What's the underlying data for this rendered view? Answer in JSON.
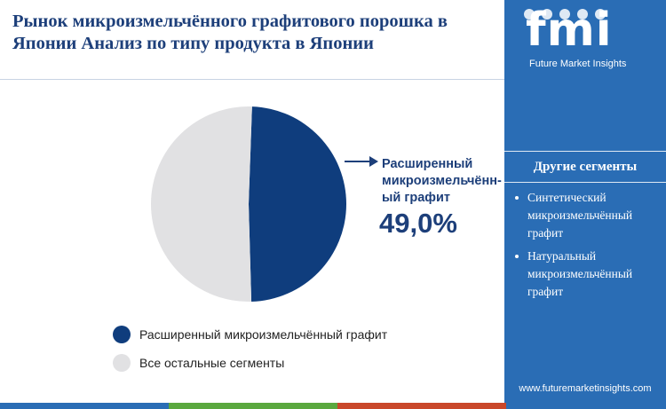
{
  "header": {
    "title": "Рынок микроизмельчённого графитового порошка в Японии Анализ по типу продукта в Японии"
  },
  "brand": {
    "logo_text": "fmi",
    "tagline": "Future Market Insights",
    "website": "www.futuremarketinsights.com",
    "sidebar_color": "#2a6db5"
  },
  "sidebar": {
    "heading": "Другие сегменты",
    "items": [
      "Синтетический микроизмельчённый графит",
      "Натуральный микроизмельчённый графит"
    ]
  },
  "chart_data": {
    "type": "pie",
    "slices": [
      {
        "label": "Расширенный микроизмельчённый графит",
        "value": 49.0,
        "color": "#0f3d7d"
      },
      {
        "label": "Все остальные сегменты",
        "value": 51.0,
        "color": "#e1e1e3"
      }
    ],
    "callout": {
      "label": "Расширенный микроизмельчённ-ый графит",
      "value_text": "49,0%"
    },
    "legend_position": "bottom-left"
  },
  "footer_bar_colors": [
    "#2a6db5",
    "#5aa83e",
    "#c9472a",
    "#2a6db5"
  ]
}
